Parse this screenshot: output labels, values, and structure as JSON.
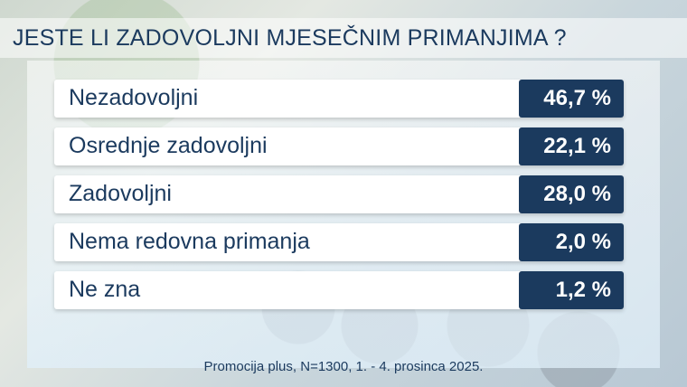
{
  "title": "JESTE LI ZADOVOLJNI MJESEČNIM PRIMANJIMA ?",
  "footer": "Promocija plus, N=1300,  1. - 4. prosinca 2025.",
  "colors": {
    "navy": "#1b3a5e",
    "row": "#ffffff"
  },
  "chart_data": {
    "type": "table",
    "title": "JESTE LI ZADOVOLJNI MJESEČNIM PRIMANJIMA ?",
    "categories": [
      "Nezadovoljni",
      "Osrednje zadovoljni",
      "Zadovoljni",
      "Nema redovna primanja",
      "Ne zna"
    ],
    "values": [
      46.7,
      22.1,
      28.0,
      2.0,
      1.2
    ],
    "labels": [
      "46,7 %",
      "22,1 %",
      "28,0 %",
      "2,0 %",
      "1,2 %"
    ]
  }
}
